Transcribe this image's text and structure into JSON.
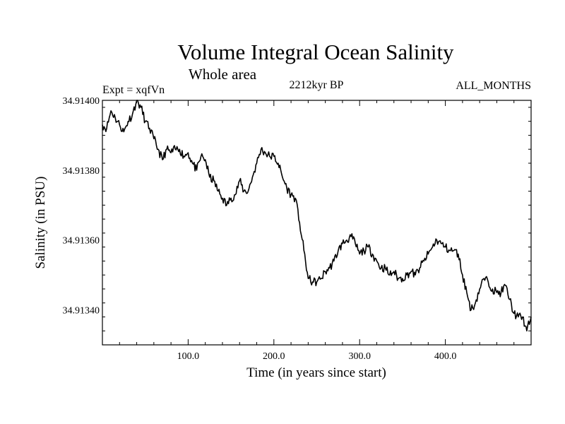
{
  "header": {
    "title": "Volume Integral Ocean Salinity",
    "subtitle": "Whole area",
    "expt": "Expt = xqfVn",
    "period": "2212kyr BP",
    "months": "ALL_MONTHS"
  },
  "chart_data": {
    "type": "line",
    "title": "Volume Integral Ocean Salinity",
    "subtitle": "Whole area",
    "xlabel": "Time (in years since start)",
    "ylabel": "Salinity (in PSU)",
    "xlim": [
      0,
      500
    ],
    "ylim": [
      34.9133,
      34.914
    ],
    "x_ticks": [
      100,
      200,
      300,
      400
    ],
    "x_tick_labels": [
      "100.0",
      "200.0",
      "300.0",
      "400.0"
    ],
    "y_ticks": [
      34.9134,
      34.9136,
      34.9138,
      34.914
    ],
    "y_tick_labels": [
      "34.91340",
      "34.91360",
      "34.91380",
      "34.91400"
    ],
    "grid": false,
    "series": [
      {
        "name": "Salinity",
        "x": [
          0,
          5,
          10,
          15,
          20,
          25,
          30,
          35,
          40,
          45,
          50,
          55,
          60,
          65,
          70,
          75,
          80,
          85,
          90,
          95,
          100,
          105,
          110,
          115,
          120,
          125,
          130,
          135,
          140,
          145,
          150,
          155,
          160,
          165,
          170,
          175,
          180,
          185,
          190,
          195,
          200,
          205,
          210,
          215,
          220,
          225,
          230,
          235,
          240,
          245,
          250,
          255,
          260,
          265,
          270,
          275,
          280,
          285,
          290,
          295,
          300,
          305,
          310,
          315,
          320,
          325,
          330,
          335,
          340,
          345,
          350,
          355,
          360,
          365,
          370,
          375,
          380,
          385,
          390,
          395,
          400,
          405,
          410,
          415,
          420,
          425,
          430,
          435,
          440,
          445,
          450,
          455,
          460,
          465,
          470,
          475,
          480,
          485,
          490,
          495,
          500
        ],
        "values": [
          34.91393,
          34.91392,
          34.91397,
          34.91395,
          34.91393,
          34.91391,
          34.91394,
          34.91396,
          34.914,
          34.91398,
          34.91394,
          34.91392,
          34.91389,
          34.91386,
          34.91383,
          34.91386,
          34.91385,
          34.91386,
          34.91386,
          34.91384,
          34.91385,
          34.91382,
          34.9138,
          34.91384,
          34.91383,
          34.91378,
          34.91377,
          34.91374,
          34.91372,
          34.9137,
          34.91372,
          34.91373,
          34.91377,
          34.91374,
          34.91374,
          34.91378,
          34.91382,
          34.91386,
          34.91385,
          34.91384,
          34.91384,
          34.91382,
          34.91378,
          34.91375,
          34.91373,
          34.91372,
          34.91365,
          34.91357,
          34.91349,
          34.91348,
          34.91348,
          34.91349,
          34.91351,
          34.91352,
          34.91354,
          34.91357,
          34.91359,
          34.9136,
          34.91361,
          34.91359,
          34.91356,
          34.91357,
          34.91358,
          34.91356,
          34.91354,
          34.91352,
          34.91352,
          34.9135,
          34.91351,
          34.91349,
          34.91349,
          34.9135,
          34.91351,
          34.9135,
          34.91352,
          34.91354,
          34.91356,
          34.91358,
          34.9136,
          34.91359,
          34.91358,
          34.91357,
          34.91357,
          34.91356,
          34.9135,
          34.91345,
          34.9134,
          34.91342,
          34.91346,
          34.91349,
          34.91348,
          34.91346,
          34.91345,
          34.91345,
          34.91347,
          34.91343,
          34.91339,
          34.91338,
          34.91338,
          34.91334,
          34.91338
        ]
      }
    ]
  }
}
